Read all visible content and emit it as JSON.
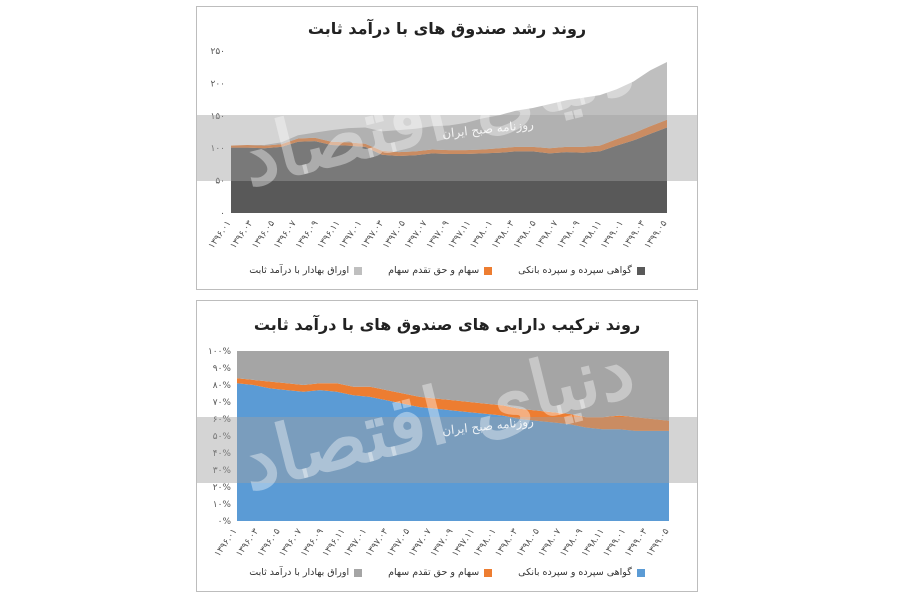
{
  "charts": [
    {
      "id": "growth",
      "title": "روند رشد صندوق های با درآمد ثابت",
      "type": "area",
      "stacked": true,
      "y_ticks": [
        "۰",
        "۵۰",
        "۱۰۰",
        "۱۵۰",
        "۲۰۰",
        "۲۵۰"
      ],
      "ylim": [
        0,
        250
      ],
      "x_ticks": [
        "۱۳۹۶.۰۱",
        "۱۳۹۶.۰۳",
        "۱۳۹۶.۰۵",
        "۱۳۹۶.۰۷",
        "۱۳۹۶.۰۹",
        "۱۳۹۶.۱۱",
        "۱۳۹۷.۰۱",
        "۱۳۹۷.۰۳",
        "۱۳۹۷.۰۵",
        "۱۳۹۷.۰۷",
        "۱۳۹۷.۰۹",
        "۱۳۹۷.۱۱",
        "۱۳۹۸.۰۱",
        "۱۳۹۸.۰۳",
        "۱۳۹۸.۰۵",
        "۱۳۹۸.۰۷",
        "۱۳۹۸.۰۹",
        "۱۳۹۸.۱۱",
        "۱۳۹۹.۰۱",
        "۱۳۹۹.۰۳",
        "۱۳۹۹.۰۵"
      ],
      "series": [
        {
          "name": "گواهی سپرده و سپرده بانکی",
          "color": "#595959",
          "values": [
            101,
            101,
            100,
            102,
            110,
            111,
            105,
            104,
            102,
            90,
            88,
            89,
            92,
            91,
            91,
            92,
            93,
            95,
            95,
            92,
            94,
            93,
            95,
            104,
            112,
            122,
            132
          ]
        },
        {
          "name": "سهام و حق تقدم سهام",
          "color": "#ed7d31",
          "values": [
            3,
            4,
            4,
            4,
            5,
            5,
            5,
            5,
            5,
            6,
            6,
            6,
            6,
            6,
            6,
            6,
            7,
            7,
            7,
            8,
            8,
            9,
            9,
            10,
            11,
            12,
            12
          ]
        },
        {
          "name": "اوراق بهادار با درآمد ثابت",
          "color": "#bfbfbf",
          "values": [
            0,
            0,
            1,
            3,
            5,
            8,
            18,
            22,
            25,
            30,
            34,
            35,
            36,
            38,
            42,
            48,
            51,
            56,
            60,
            68,
            72,
            76,
            78,
            77,
            80,
            86,
            89
          ]
        }
      ],
      "grid": false,
      "legend_position": "bottom"
    },
    {
      "id": "composition",
      "title": "روند ترکیب دارایی های صندوق های با درآمد ثابت",
      "type": "area",
      "stacked": true,
      "y_ticks": [
        "۰%",
        "۱۰%",
        "۲۰%",
        "۳۰%",
        "۴۰%",
        "۵۰%",
        "۶۰%",
        "۷۰%",
        "۸۰%",
        "۹۰%",
        "۱۰۰%"
      ],
      "ylim": [
        0,
        100
      ],
      "x_ticks": [
        "۱۳۹۶.۰۱",
        "۱۳۹۶.۰۳",
        "۱۳۹۶.۰۵",
        "۱۳۹۶.۰۷",
        "۱۳۹۶.۰۹",
        "۱۳۹۶.۱۱",
        "۱۳۹۷.۰۱",
        "۱۳۹۷.۰۳",
        "۱۳۹۷.۰۵",
        "۱۳۹۷.۰۷",
        "۱۳۹۷.۰۹",
        "۱۳۹۷.۱۱",
        "۱۳۹۸.۰۱",
        "۱۳۹۸.۰۳",
        "۱۳۹۸.۰۵",
        "۱۳۹۸.۰۷",
        "۱۳۹۸.۰۹",
        "۱۳۹۸.۱۱",
        "۱۳۹۹.۰۱",
        "۱۳۹۹.۰۳",
        "۱۳۹۹.۰۵"
      ],
      "series": [
        {
          "name": "گواهی سپرده و سپرده بانکی",
          "color": "#5b9bd5",
          "values": [
            81,
            80,
            78,
            77,
            76,
            77,
            76,
            74,
            73,
            71,
            69,
            67,
            66,
            65,
            64,
            63,
            62,
            60,
            59,
            58,
            57,
            55,
            54,
            54,
            53,
            53,
            53
          ]
        },
        {
          "name": "سهام و حق تقدم سهام",
          "color": "#ed7d31",
          "values": [
            3,
            3,
            4,
            4,
            4,
            4,
            5,
            5,
            6,
            6,
            6,
            6,
            6,
            6,
            6,
            6,
            6,
            6,
            6,
            6,
            6,
            6,
            7,
            8,
            8,
            7,
            6
          ]
        },
        {
          "name": "اوراق بهادار با درآمد ثابت",
          "color": "#a5a5a5",
          "values": [
            16,
            17,
            18,
            19,
            20,
            19,
            19,
            21,
            21,
            23,
            25,
            27,
            28,
            29,
            30,
            31,
            32,
            34,
            35,
            36,
            37,
            39,
            39,
            38,
            39,
            40,
            41
          ]
        }
      ],
      "grid": false,
      "legend_position": "bottom"
    }
  ],
  "watermark": {
    "brand": "دنیای اقتصاد",
    "newspaper": "روزنامه صبح ایران"
  }
}
